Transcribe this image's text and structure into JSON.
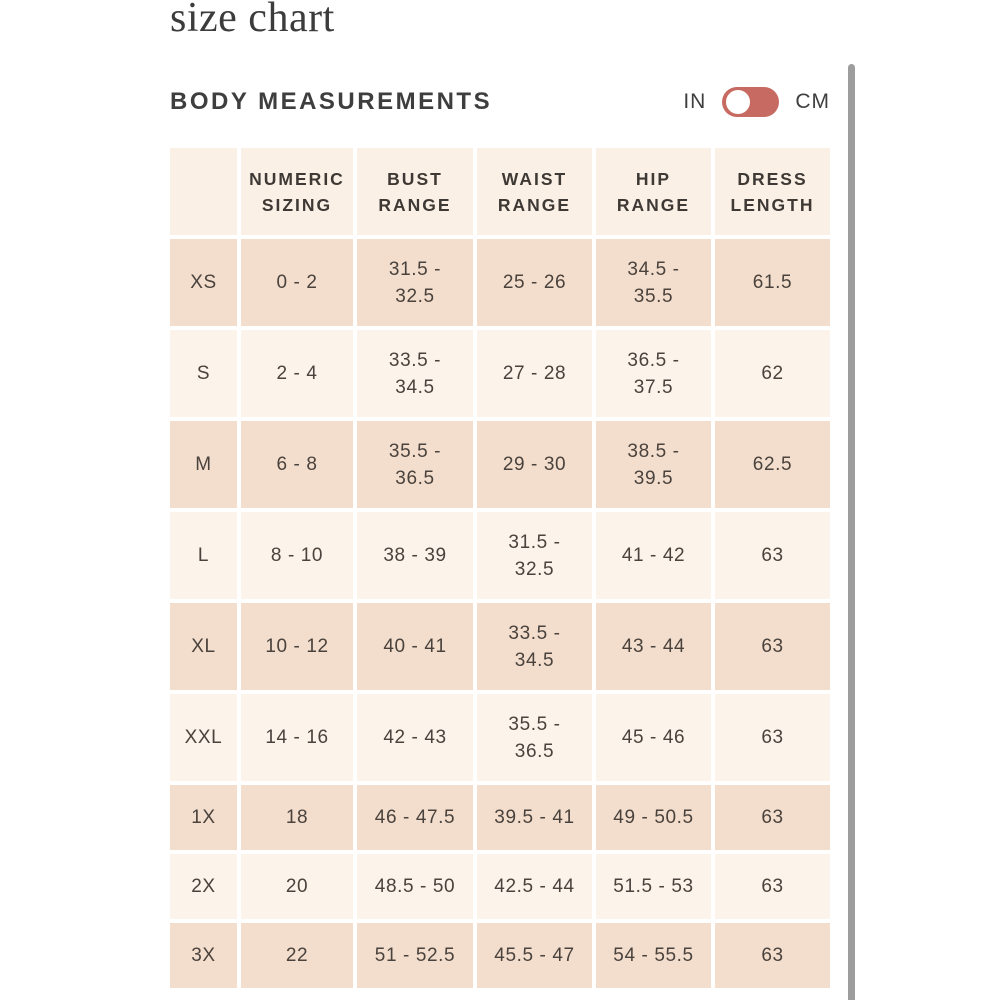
{
  "page": {
    "title": "size chart"
  },
  "section": {
    "heading": "BODY MEASUREMENTS",
    "unit_toggle": {
      "left_label": "IN",
      "right_label": "CM",
      "selected": "IN",
      "accent_color": "#c76b62"
    }
  },
  "table": {
    "headers": [
      "",
      "NUMERIC\nSIZING",
      "BUST\nRANGE",
      "WAIST\nRANGE",
      "HIP\nRANGE",
      "DRESS\nLENGTH"
    ],
    "rows": [
      {
        "cells": [
          "XS",
          "0 - 2",
          "31.5 -\n32.5",
          "25 - 26",
          "34.5 -\n35.5",
          "61.5"
        ]
      },
      {
        "cells": [
          "S",
          "2 - 4",
          "33.5 -\n34.5",
          "27 - 28",
          "36.5 -\n37.5",
          "62"
        ]
      },
      {
        "cells": [
          "M",
          "6 - 8",
          "35.5 -\n36.5",
          "29 - 30",
          "38.5 -\n39.5",
          "62.5"
        ]
      },
      {
        "cells": [
          "L",
          "8 - 10",
          "38 - 39",
          "31.5 -\n32.5",
          "41 - 42",
          "63"
        ]
      },
      {
        "cells": [
          "XL",
          "10 - 12",
          "40 - 41",
          "33.5 -\n34.5",
          "43 - 44",
          "63"
        ]
      },
      {
        "cells": [
          "XXL",
          "14 - 16",
          "42 - 43",
          "35.5 -\n36.5",
          "45 - 46",
          "63"
        ]
      },
      {
        "cells": [
          "1X",
          "18",
          "46 - 47.5",
          "39.5 - 41",
          "49 - 50.5",
          "63"
        ]
      },
      {
        "cells": [
          "2X",
          "20",
          "48.5 - 50",
          "42.5 - 44",
          "51.5 - 53",
          "63"
        ]
      },
      {
        "cells": [
          "3X",
          "22",
          "51 - 52.5",
          "45.5 - 47",
          "54 - 55.5",
          "63"
        ]
      }
    ]
  },
  "colors": {
    "accent": "#c76b62",
    "row_dark": "#f3decd",
    "row_light": "#fcf3ea",
    "header_bg": "#fbf0e6",
    "scrollbar": "#9d9d9d",
    "text": "#4a423c"
  }
}
